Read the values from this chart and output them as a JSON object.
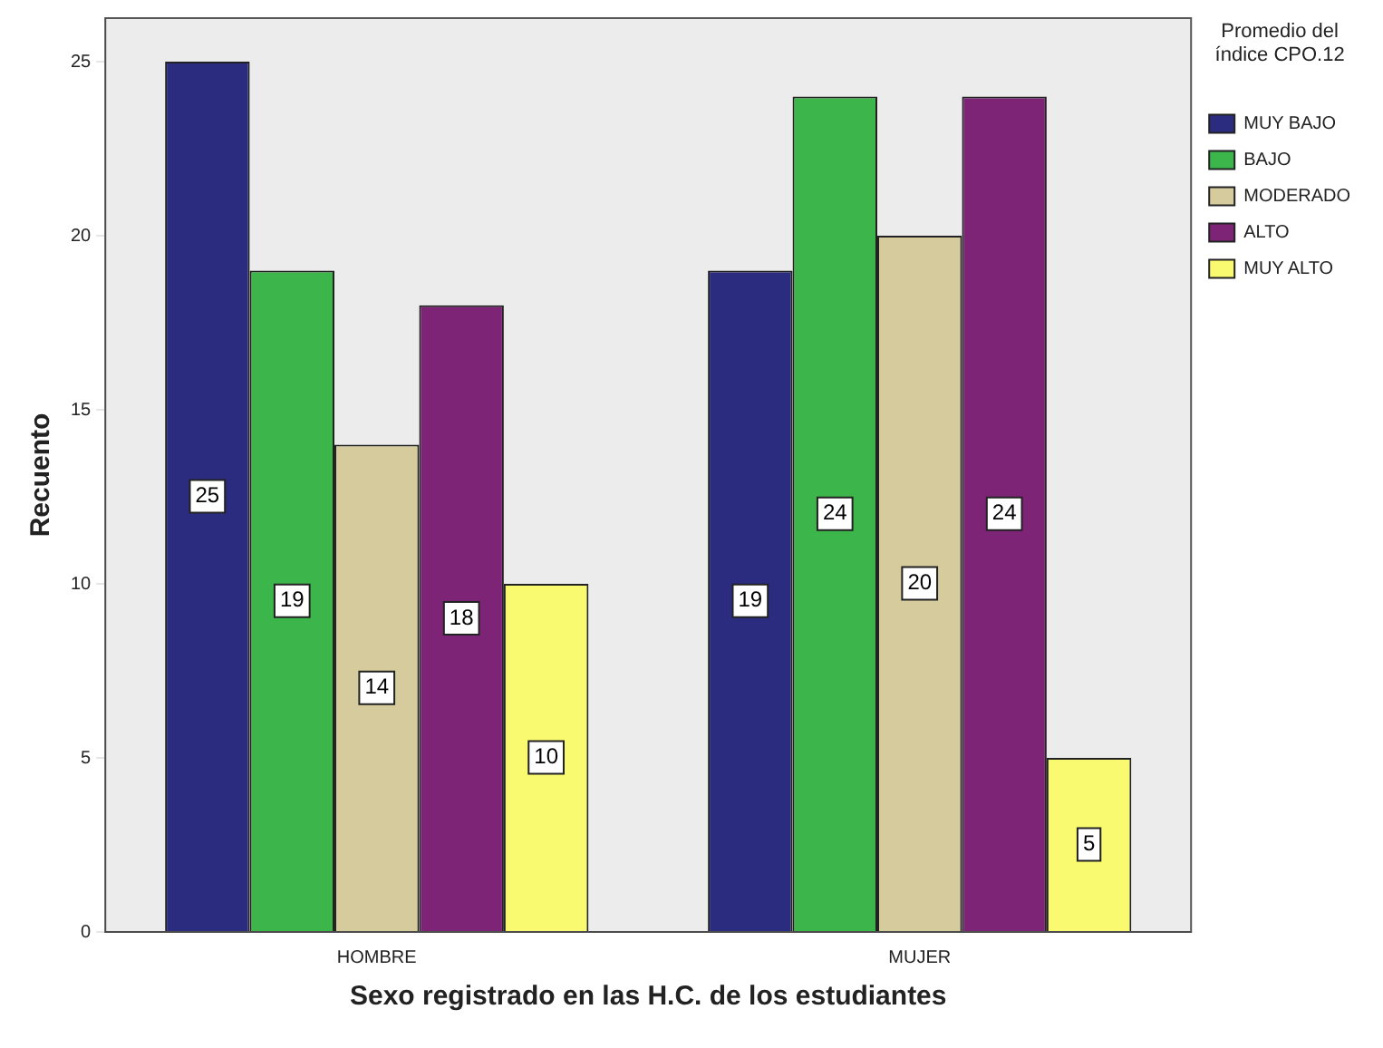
{
  "chart_data": {
    "type": "bar",
    "xlabel": "Sexo registrado en las H.C. de los estudiantes",
    "ylabel": "Recuento",
    "legend_title": "Promedio del índice CPO.12",
    "categories": [
      "HOMBRE",
      "MUJER"
    ],
    "series": [
      {
        "name": "MUY BAJO",
        "color": "#2b2b80",
        "values": [
          25,
          19
        ]
      },
      {
        "name": "BAJO",
        "color": "#3cb54a",
        "values": [
          19,
          24
        ]
      },
      {
        "name": "MODERADO",
        "color": "#d5cb9c",
        "values": [
          14,
          20
        ]
      },
      {
        "name": "ALTO",
        "color": "#7d2476",
        "values": [
          18,
          24
        ]
      },
      {
        "name": "MUY ALTO",
        "color": "#fafa70",
        "values": [
          10,
          5
        ]
      }
    ],
    "ylim": [
      0,
      26.25
    ],
    "yticks": [
      0,
      5,
      10,
      15,
      20,
      25
    ],
    "grid": false,
    "legend": "top right",
    "data_labels": true
  }
}
